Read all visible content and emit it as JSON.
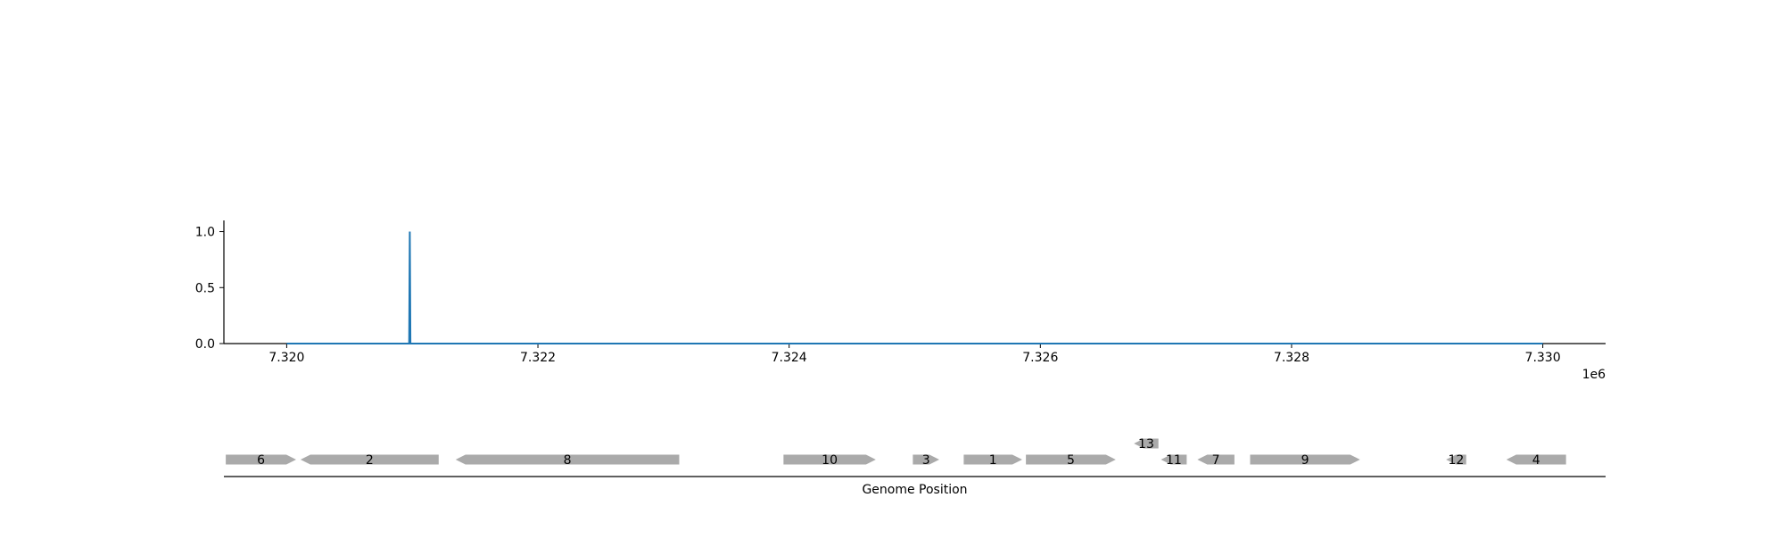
{
  "chart_data": [
    {
      "type": "line",
      "title": "",
      "xlabel": "",
      "ylabel": "",
      "x_offset_label": "1e6",
      "xlim": [
        7319500,
        7330500
      ],
      "ylim": [
        0,
        1.1
      ],
      "x_ticks": [
        7320000,
        7322000,
        7324000,
        7326000,
        7328000,
        7330000
      ],
      "x_tick_labels": [
        "7.320",
        "7.322",
        "7.324",
        "7.326",
        "7.328",
        "7.330"
      ],
      "y_ticks": [
        0,
        0.5,
        1.0
      ],
      "y_tick_labels": [
        "0.0",
        "0.5",
        "1.0"
      ],
      "color": "#1f77b4",
      "grid": false,
      "series": [
        {
          "x": [
            7320000,
            7320975,
            7320980,
            7320985,
            7330000
          ],
          "y": [
            0,
            0,
            1.0,
            0,
            0
          ]
        }
      ]
    },
    {
      "type": "gene-track",
      "xlabel": "Genome Position",
      "xlim": [
        7319500,
        7330500
      ],
      "color": "#aaaaaa",
      "genes": [
        {
          "label": "6",
          "start": 7319515,
          "end": 7320075,
          "strand": "+",
          "row": 0
        },
        {
          "label": "2",
          "start": 7320110,
          "end": 7321210,
          "strand": "-",
          "row": 0
        },
        {
          "label": "8",
          "start": 7321345,
          "end": 7323125,
          "strand": "-",
          "row": 0
        },
        {
          "label": "10",
          "start": 7323955,
          "end": 7324690,
          "strand": "+",
          "row": 0
        },
        {
          "label": "3",
          "start": 7324985,
          "end": 7325195,
          "strand": "+",
          "row": 0
        },
        {
          "label": "1",
          "start": 7325390,
          "end": 7325855,
          "strand": "+",
          "row": 0
        },
        {
          "label": "5",
          "start": 7325885,
          "end": 7326600,
          "strand": "+",
          "row": 0
        },
        {
          "label": "13",
          "start": 7326745,
          "end": 7326940,
          "strand": "-",
          "row": 1
        },
        {
          "label": "11",
          "start": 7326960,
          "end": 7327165,
          "strand": "-",
          "row": 0
        },
        {
          "label": "7",
          "start": 7327250,
          "end": 7327545,
          "strand": "-",
          "row": 0
        },
        {
          "label": "9",
          "start": 7327670,
          "end": 7328545,
          "strand": "+",
          "row": 0
        },
        {
          "label": "12",
          "start": 7329230,
          "end": 7329390,
          "strand": "-",
          "row": 0
        },
        {
          "label": "4",
          "start": 7329710,
          "end": 7330185,
          "strand": "-",
          "row": 0
        }
      ]
    }
  ]
}
